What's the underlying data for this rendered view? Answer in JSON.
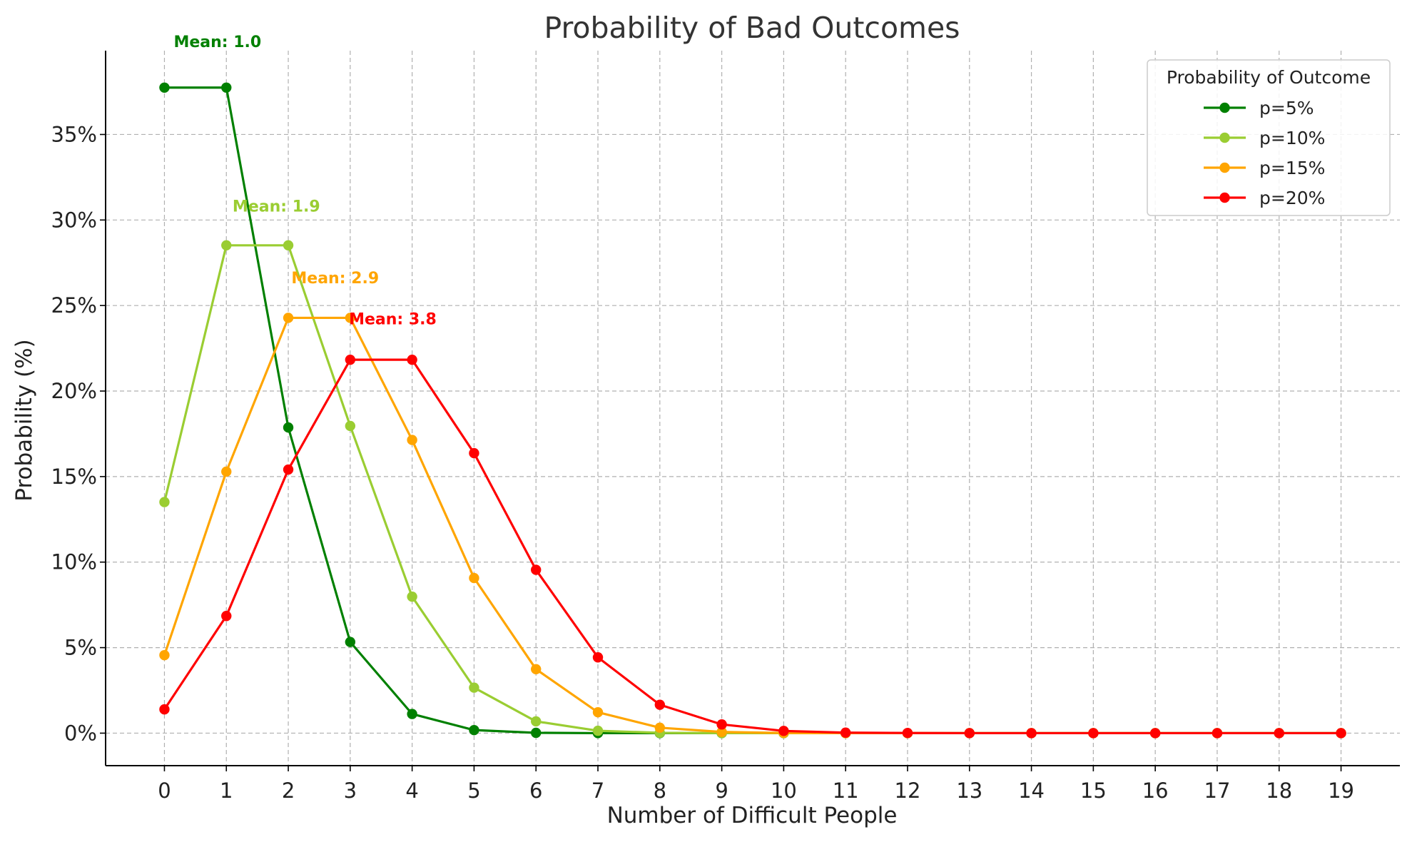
{
  "chart_data": {
    "type": "line",
    "title": "Probability of Bad Outcomes",
    "xlabel": "Number of Difficult People",
    "ylabel": "Probability (%)",
    "x": [
      0,
      1,
      2,
      3,
      4,
      5,
      6,
      7,
      8,
      9,
      10,
      11,
      12,
      13,
      14,
      15,
      16,
      17,
      18,
      19
    ],
    "x_ticks": [
      "0",
      "1",
      "2",
      "3",
      "4",
      "5",
      "6",
      "7",
      "8",
      "9",
      "10",
      "11",
      "12",
      "13",
      "14",
      "15",
      "16",
      "17",
      "18",
      "19"
    ],
    "xlim": [
      -0.95,
      19.95
    ],
    "ylim": [
      -1.9,
      39.9
    ],
    "y_ticks": [
      0,
      5,
      10,
      15,
      20,
      25,
      30,
      35
    ],
    "y_tick_labels": [
      "0%",
      "5%",
      "10%",
      "15%",
      "20%",
      "25%",
      "30%",
      "35%"
    ],
    "grid": true,
    "legend": {
      "title": "Probability of Outcome",
      "placement": "top-right"
    },
    "series": [
      {
        "name": "p=5%",
        "color": "#008000",
        "values": [
          37.74,
          37.74,
          17.87,
          5.33,
          1.12,
          0.18,
          0.02,
          0.0,
          0.0,
          0.0,
          0.0,
          0.0,
          0.0,
          0.0,
          0.0,
          0.0,
          0.0,
          0.0,
          0.0,
          0.0
        ],
        "mean_label": "Mean: 1.0",
        "mean_label_at": {
          "x": 0.15,
          "y": 40.1
        }
      },
      {
        "name": "p=10%",
        "color": "#9acd32",
        "values": [
          13.51,
          28.52,
          28.52,
          17.96,
          7.98,
          2.66,
          0.69,
          0.14,
          0.02,
          0.0,
          0.0,
          0.0,
          0.0,
          0.0,
          0.0,
          0.0,
          0.0,
          0.0,
          0.0,
          0.0
        ],
        "mean_label": "Mean: 1.9",
        "mean_label_at": {
          "x": 1.1,
          "y": 30.5
        }
      },
      {
        "name": "p=15%",
        "color": "#ffa500",
        "values": [
          4.56,
          15.29,
          24.28,
          24.28,
          17.14,
          9.07,
          3.74,
          1.22,
          0.32,
          0.07,
          0.01,
          0.0,
          0.0,
          0.0,
          0.0,
          0.0,
          0.0,
          0.0,
          0.0,
          0.0
        ],
        "mean_label": "Mean: 2.9",
        "mean_label_at": {
          "x": 2.05,
          "y": 26.3
        }
      },
      {
        "name": "p=20%",
        "color": "#ff0000",
        "values": [
          1.39,
          6.85,
          15.41,
          21.83,
          21.83,
          16.37,
          9.55,
          4.43,
          1.66,
          0.51,
          0.13,
          0.03,
          0.01,
          0.0,
          0.0,
          0.0,
          0.0,
          0.0,
          0.0,
          0.0
        ],
        "mean_label": "Mean: 3.8",
        "mean_label_at": {
          "x": 2.98,
          "y": 23.9
        }
      }
    ]
  }
}
